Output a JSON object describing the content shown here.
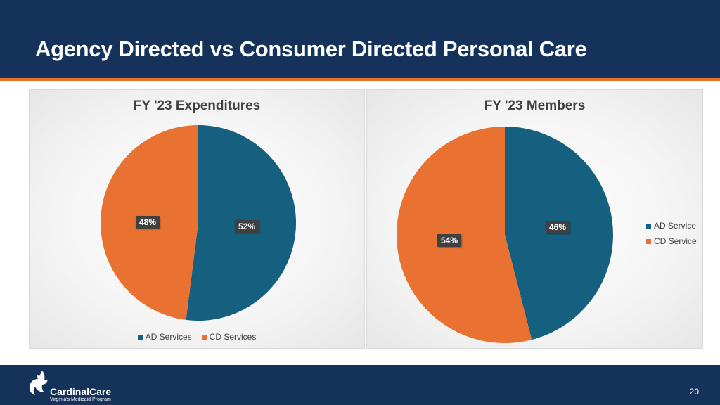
{
  "header": {
    "title": "Agency Directed vs Consumer Directed Personal Care"
  },
  "colors": {
    "header_bg": "#14325a",
    "accent": "#e8712e",
    "ad": "#15607e",
    "cd": "#e97132"
  },
  "chart_data": [
    {
      "type": "pie",
      "title": "FY '23 Expenditures",
      "categories": [
        "AD Services",
        "CD Services"
      ],
      "values": [
        52,
        48
      ],
      "labels": [
        "52%",
        "48%"
      ],
      "colors": [
        "#15607e",
        "#e97132"
      ],
      "legend": "bottom"
    },
    {
      "type": "pie",
      "title": "FY '23 Members",
      "categories": [
        "AD Service",
        "CD Service"
      ],
      "values": [
        46,
        54
      ],
      "labels": [
        "46%",
        "54%"
      ],
      "colors": [
        "#15607e",
        "#e97132"
      ],
      "legend": "right"
    }
  ],
  "footer": {
    "logo_name": "CardinalCare",
    "logo_tagline": "Virginia's Medicaid Program",
    "logo_icon": "cardinal-bird-icon",
    "page_number": "20"
  }
}
